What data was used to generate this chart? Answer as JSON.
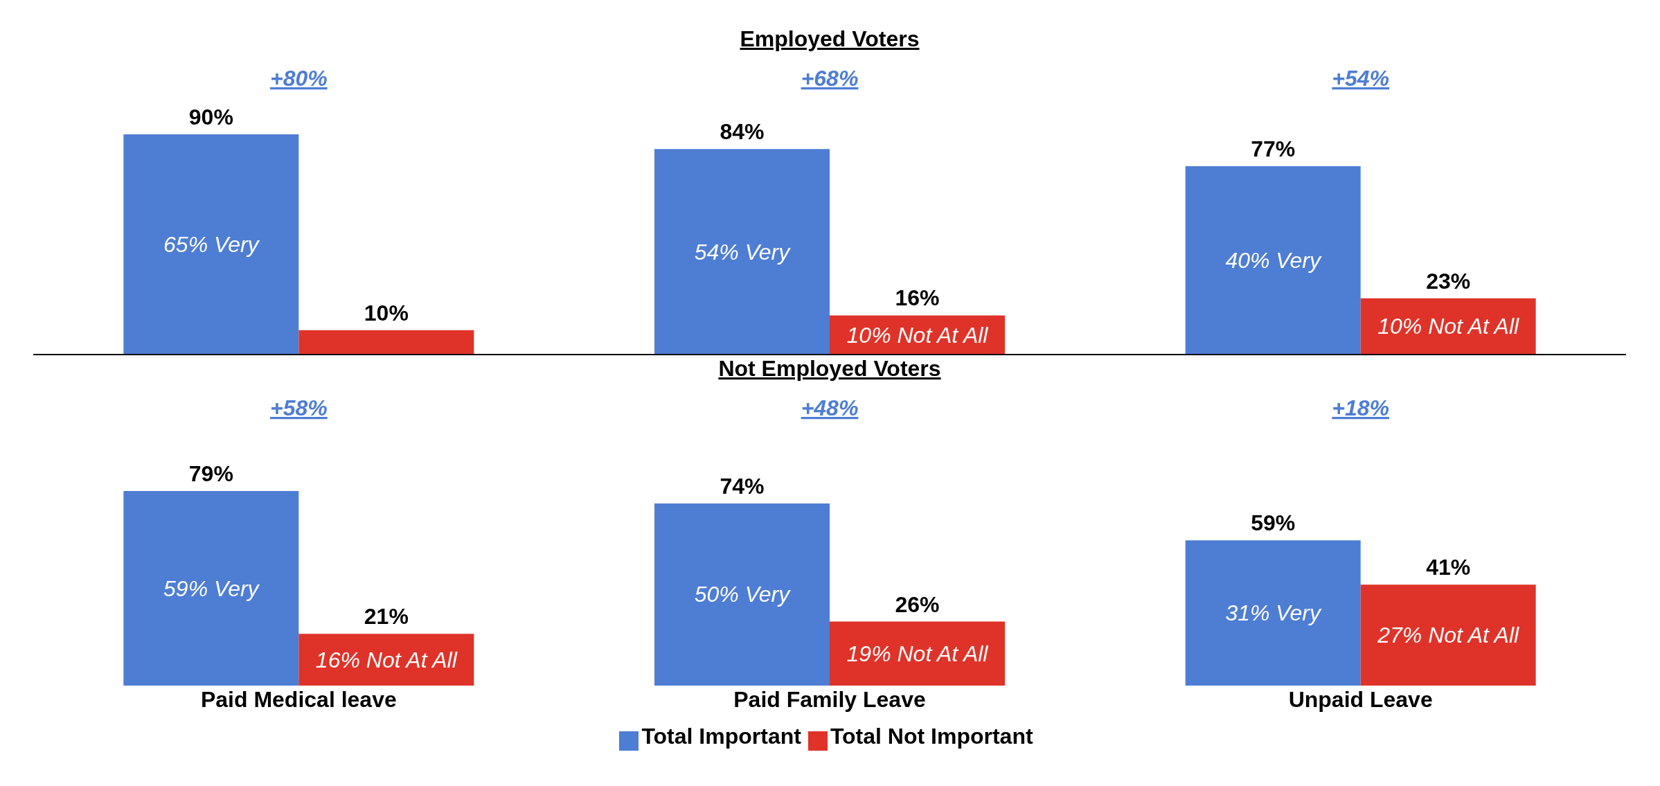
{
  "chart_data": [
    {
      "type": "bar",
      "title": "Employed Voters",
      "categories": [
        "Paid Medical leave",
        "Paid Family Leave",
        "Unpaid Leave"
      ],
      "tick_labels": false,
      "legend": false,
      "series": [
        {
          "color": "#4e7dd4",
          "values": [
            90,
            84,
            77
          ],
          "value_labels": [
            "90%",
            "84%",
            "77%"
          ]
        },
        {
          "color": "#df3329",
          "values": [
            10,
            16,
            23
          ],
          "value_labels": [
            "10%",
            "16%",
            "23%"
          ]
        }
      ],
      "annotations": [
        "+80%",
        "+68%",
        "+54%",
        {
          "text": "65% Very",
          "x": "Paid Medical leave",
          "y": 45
        },
        {
          "text": "54% Very",
          "x": "Paid Family Leave",
          "y": 42
        },
        {
          "text": "40% Very",
          "x": "Unpaid Leave",
          "y": 38.5
        },
        {
          "text": "10% Not At All",
          "x": "Paid Family Leave",
          "y": 8
        },
        {
          "text": "10% Not At All",
          "x": "Unpaid Leave",
          "y": 11.5
        }
      ]
    },
    {
      "type": "bar",
      "title": "Not Employed Voters",
      "categories": [
        "Paid Medical leave",
        "Paid Family Leave",
        "Unpaid Leave"
      ],
      "tick_labels": "x",
      "legend": "bottom",
      "series": [
        {
          "name": "Total Important",
          "color": "#4e7dd4",
          "values": [
            79,
            74,
            59
          ],
          "value_labels": [
            "79%",
            "74%",
            "59%"
          ]
        },
        {
          "name": "Total Not Important",
          "color": "#df3329",
          "values": [
            21,
            26,
            41
          ],
          "value_labels": [
            "21%",
            "26%",
            "41%"
          ]
        }
      ],
      "annotations": [
        "+58%",
        "+48%",
        "+18%",
        {
          "text": "59% Very",
          "x": "Paid Medical leave",
          "y": 39.5
        },
        {
          "text": "50% Very",
          "x": "Paid Family Leave",
          "y": 37
        },
        {
          "text": "31% Very",
          "x": "Unpaid Leave",
          "y": 29.5
        },
        {
          "text": "16% Not At All",
          "x": "Paid Medical leave",
          "y": 10.5
        },
        {
          "text": "19% Not At All",
          "x": "Paid Family Leave",
          "y": 13
        },
        {
          "text": "27% Not At All",
          "x": "Unpaid Leave",
          "y": 20.5
        }
      ]
    }
  ]
}
